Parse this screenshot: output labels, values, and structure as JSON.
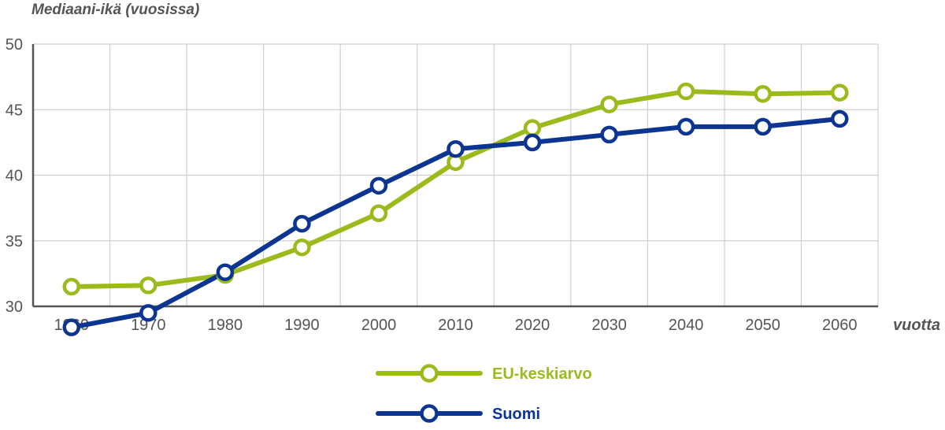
{
  "chart_data": {
    "type": "line",
    "ylabel": "Mediaani-ikä (vuosissa)",
    "xlabel": "vuotta",
    "categories": [
      "1960",
      "1970",
      "1980",
      "1990",
      "2000",
      "2010",
      "2020",
      "2030",
      "2040",
      "2050",
      "2060"
    ],
    "yticks": [
      "30",
      "35",
      "40",
      "45",
      "50"
    ],
    "ylim": [
      30,
      50
    ],
    "grid": true,
    "legend_position": "bottom-center",
    "series": [
      {
        "name": "EU-keskiarvo",
        "color": "#9bbb1c",
        "values": [
          31.5,
          31.6,
          32.4,
          34.5,
          37.1,
          41.0,
          43.6,
          45.4,
          46.4,
          46.2,
          46.3
        ]
      },
      {
        "name": "Suomi",
        "color": "#0b3590",
        "values": [
          28.4,
          29.5,
          32.6,
          36.3,
          39.2,
          42.0,
          42.5,
          43.1,
          43.7,
          43.7,
          44.3
        ]
      }
    ]
  }
}
